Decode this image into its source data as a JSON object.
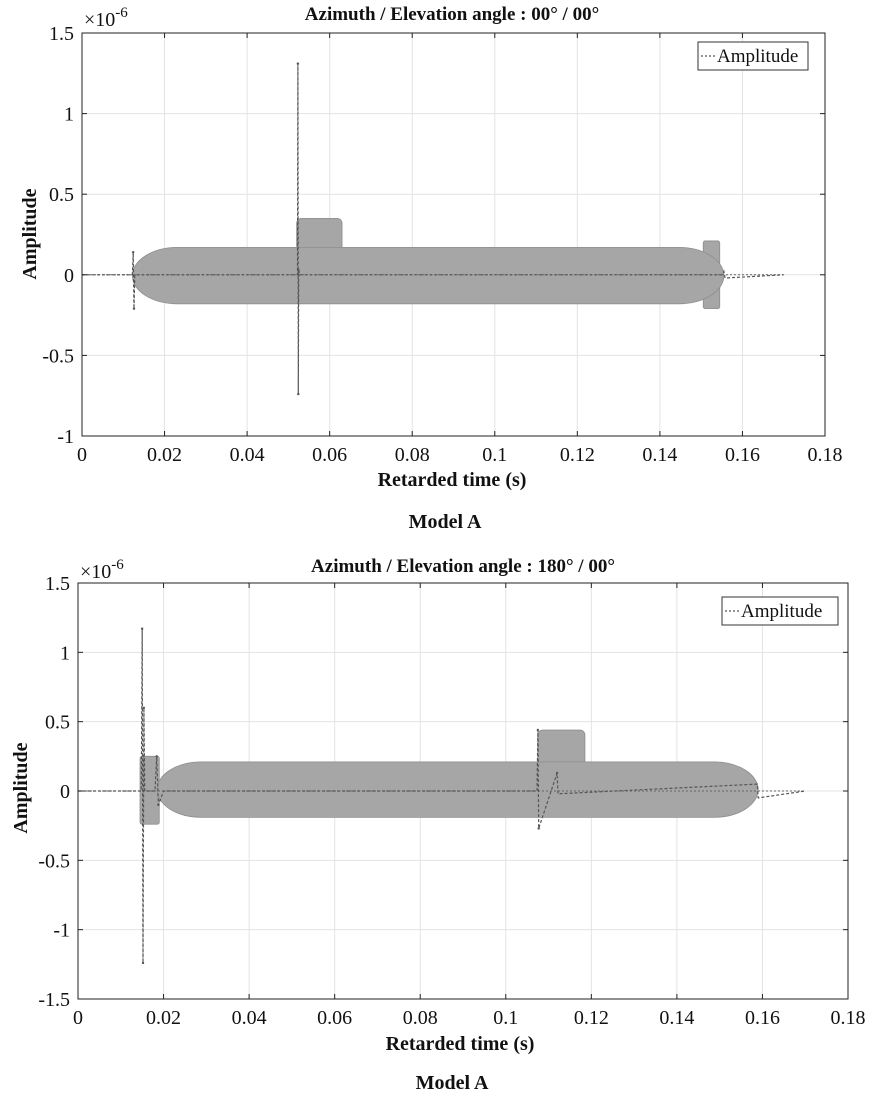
{
  "figure": {
    "captions": [
      "Model A",
      "Model A"
    ]
  },
  "chart_data": [
    {
      "type": "line",
      "title": "Azimuth / Elevation angle : 00° / 00°",
      "xlabel": "Retarded time (s)",
      "ylabel": "Amplitude",
      "y_exponent_label": "×10",
      "y_exponent_power": "-6",
      "xlim": [
        0,
        0.18
      ],
      "ylim": [
        -1,
        1.5
      ],
      "x_ticks": [
        0,
        0.02,
        0.04,
        0.06,
        0.08,
        0.1,
        0.12,
        0.14,
        0.16,
        0.18
      ],
      "x_tick_labels": [
        "0",
        "0.02",
        "0.04",
        "0.06",
        "0.08",
        "0.1",
        "0.12",
        "0.14",
        "0.16",
        "0.18"
      ],
      "y_ticks": [
        -1,
        -0.5,
        0,
        0.5,
        1,
        1.5
      ],
      "y_tick_labels": [
        "-1",
        "-0.5",
        "0",
        "0.5",
        "1",
        "1.5"
      ],
      "grid": true,
      "legend_position": "top-right",
      "legend_label": "Amplitude",
      "line_color": "#555555",
      "series": [
        {
          "name": "Amplitude",
          "x": [
            0.0,
            0.0122,
            0.0124,
            0.0126,
            0.0128,
            0.014,
            0.0522,
            0.0523,
            0.0524,
            0.0525,
            0.0527,
            0.15,
            0.1552,
            0.1555,
            0.1558,
            0.17
          ],
          "y": [
            0,
            0.0,
            0.14,
            -0.21,
            0.0,
            0.0,
            0.0,
            1.31,
            -0.74,
            0.04,
            0.0,
            0.0,
            0.0,
            0.02,
            -0.02,
            0.0
          ]
        }
      ],
      "hull": {
        "body_x": [
          0.0122,
          0.1555
        ],
        "body_y": [
          -0.18,
          0.17
        ],
        "sail_x": [
          0.052,
          0.063
        ],
        "sail_y": [
          0.16,
          0.35
        ],
        "fin_x": [
          0.1505,
          0.1545
        ],
        "fin_y": [
          -0.21,
          0.21
        ],
        "color": "#a6a6a6"
      }
    },
    {
      "type": "line",
      "title": "Azimuth / Elevation angle : 180° / 00°",
      "xlabel": "Retarded time (s)",
      "ylabel": "Amplitude",
      "y_exponent_label": "×10",
      "y_exponent_power": "-6",
      "xlim": [
        0,
        0.18
      ],
      "ylim": [
        -1.5,
        1.5
      ],
      "x_ticks": [
        0,
        0.02,
        0.04,
        0.06,
        0.08,
        0.1,
        0.12,
        0.14,
        0.16,
        0.18
      ],
      "x_tick_labels": [
        "0",
        "0.02",
        "0.04",
        "0.06",
        "0.08",
        "0.1",
        "0.12",
        "0.14",
        "0.16",
        "0.18"
      ],
      "y_ticks": [
        -1.5,
        -1,
        -0.5,
        0,
        0.5,
        1,
        1.5
      ],
      "y_tick_labels": [
        "-1.5",
        "-1",
        "-0.5",
        "0",
        "0.5",
        "1",
        "1.5"
      ],
      "grid": true,
      "legend_position": "top-right",
      "legend_label": "Amplitude",
      "line_color": "#555555",
      "series": [
        {
          "name": "Amplitude",
          "x": [
            0.0,
            0.0148,
            0.015,
            0.0152,
            0.0154,
            0.0156,
            0.018,
            0.0184,
            0.0188,
            0.02,
            0.1073,
            0.1075,
            0.1077,
            0.112,
            0.1122,
            0.1588,
            0.159,
            0.17
          ],
          "y": [
            0,
            0.0,
            1.17,
            -1.24,
            0.6,
            0.0,
            0.0,
            0.25,
            -0.1,
            0.0,
            0.0,
            0.44,
            -0.27,
            0.13,
            -0.02,
            0.05,
            -0.05,
            0.0
          ]
        }
      ],
      "hull": {
        "body_x": [
          0.0185,
          0.159
        ],
        "body_y": [
          -0.19,
          0.21
        ],
        "sail_x": [
          0.1075,
          0.1185
        ],
        "sail_y": [
          0.2,
          0.44
        ],
        "fin_x": [
          0.0145,
          0.019
        ],
        "fin_y": [
          -0.24,
          0.25
        ],
        "color": "#a6a6a6"
      }
    }
  ]
}
